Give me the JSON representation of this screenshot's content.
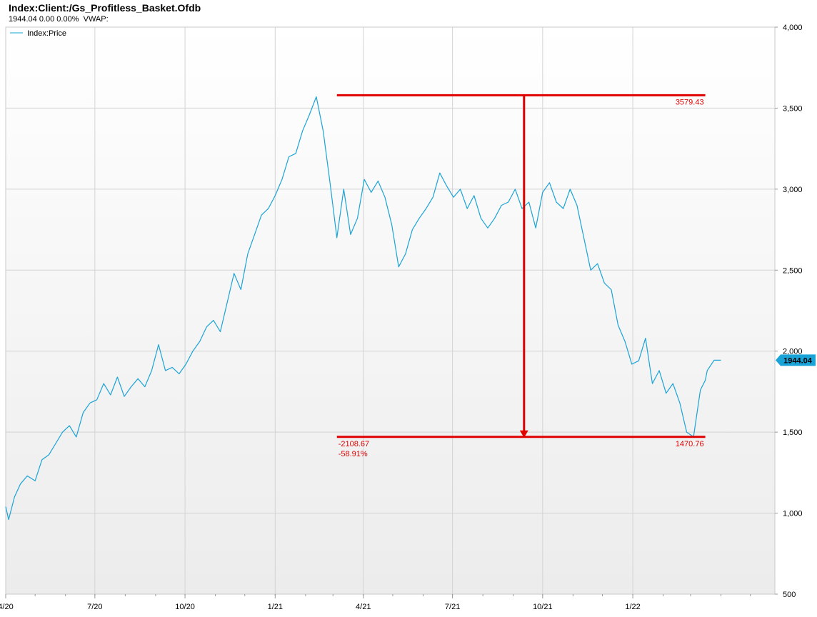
{
  "header": {
    "title": "Index:Client:/Gs_Profitless_Basket.Ofdb",
    "quote": "1944.04 0.00 0.00%",
    "vwap_label": "VWAP:"
  },
  "chart_data": {
    "type": "line",
    "title": "Index:Client:/Gs_Profitless_Basket.Ofdb",
    "ylim": [
      500,
      4000
    ],
    "y_ticks": [
      500,
      1000,
      1500,
      2000,
      2500,
      3000,
      3500,
      4000
    ],
    "y_tick_labels": [
      "500",
      "1,000",
      "1,500",
      "2,000",
      "2,500",
      "3,000",
      "3,500",
      "4,000"
    ],
    "x_tick_labels": [
      "4/20",
      "7/20",
      "10/20",
      "1/21",
      "4/21",
      "7/21",
      "10/21",
      "1/22"
    ],
    "grid": true,
    "legend_position": "top-left",
    "series": [
      {
        "name": "Index:Price",
        "color": "#1aa3d6",
        "x": [
          "2020-04-01",
          "2020-04-04",
          "2020-04-10",
          "2020-04-16",
          "2020-04-23",
          "2020-05-01",
          "2020-05-08",
          "2020-05-15",
          "2020-05-22",
          "2020-05-29",
          "2020-06-05",
          "2020-06-12",
          "2020-06-19",
          "2020-06-26",
          "2020-07-03",
          "2020-07-10",
          "2020-07-17",
          "2020-07-24",
          "2020-07-31",
          "2020-08-07",
          "2020-08-14",
          "2020-08-21",
          "2020-08-28",
          "2020-09-04",
          "2020-09-11",
          "2020-09-18",
          "2020-09-25",
          "2020-10-02",
          "2020-10-09",
          "2020-10-16",
          "2020-10-23",
          "2020-10-30",
          "2020-11-06",
          "2020-11-13",
          "2020-11-20",
          "2020-11-27",
          "2020-12-04",
          "2020-12-11",
          "2020-12-18",
          "2020-12-25",
          "2021-01-01",
          "2021-01-08",
          "2021-01-15",
          "2021-01-22",
          "2021-01-29",
          "2021-02-05",
          "2021-02-12",
          "2021-02-19",
          "2021-02-26",
          "2021-03-05",
          "2021-03-12",
          "2021-03-19",
          "2021-03-26",
          "2021-04-02",
          "2021-04-09",
          "2021-04-16",
          "2021-04-23",
          "2021-04-30",
          "2021-05-07",
          "2021-05-14",
          "2021-05-21",
          "2021-05-28",
          "2021-06-04",
          "2021-06-11",
          "2021-06-18",
          "2021-06-25",
          "2021-07-02",
          "2021-07-09",
          "2021-07-16",
          "2021-07-23",
          "2021-07-30",
          "2021-08-06",
          "2021-08-13",
          "2021-08-20",
          "2021-08-27",
          "2021-09-03",
          "2021-09-10",
          "2021-09-17",
          "2021-09-24",
          "2021-10-01",
          "2021-10-08",
          "2021-10-15",
          "2021-10-22",
          "2021-10-29",
          "2021-11-05",
          "2021-11-12",
          "2021-11-19",
          "2021-11-26",
          "2021-12-03",
          "2021-12-10",
          "2021-12-17",
          "2021-12-24",
          "2021-12-31",
          "2022-01-07",
          "2022-01-14",
          "2022-01-21",
          "2022-01-28",
          "2022-02-04",
          "2022-02-11",
          "2022-02-18",
          "2022-02-25",
          "2022-03-04",
          "2022-03-11",
          "2022-03-16",
          "2022-03-18",
          "2022-03-25",
          "2022-04-01"
        ],
        "values": [
          1040,
          960,
          1100,
          1180,
          1230,
          1200,
          1330,
          1360,
          1430,
          1500,
          1540,
          1470,
          1620,
          1680,
          1700,
          1800,
          1730,
          1840,
          1720,
          1780,
          1830,
          1780,
          1880,
          2040,
          1880,
          1900,
          1860,
          1920,
          2000,
          2060,
          2150,
          2190,
          2120,
          2300,
          2480,
          2380,
          2600,
          2720,
          2840,
          2880,
          2960,
          3060,
          3200,
          3220,
          3360,
          3460,
          3570,
          3360,
          3040,
          2700,
          3000,
          2720,
          2820,
          3060,
          2980,
          3050,
          2950,
          2780,
          2520,
          2600,
          2750,
          2820,
          2880,
          2950,
          3100,
          3020,
          2950,
          3000,
          2880,
          2960,
          2820,
          2760,
          2820,
          2900,
          2920,
          3000,
          2880,
          2920,
          2760,
          2980,
          3040,
          2920,
          2880,
          3000,
          2900,
          2700,
          2500,
          2540,
          2420,
          2380,
          2160,
          2060,
          1920,
          1940,
          2080,
          1800,
          1880,
          1740,
          1800,
          1680,
          1500,
          1470.76,
          1760,
          1820,
          1880,
          1944.04,
          1944.04
        ]
      }
    ],
    "current_value_label": "1944.04",
    "annotation": {
      "high_label": "3579.43",
      "low_label": "1470.76",
      "change_label": "-2108.67",
      "percent_label": "-58.91%",
      "color": "#e00000",
      "high_value": 3579.43,
      "low_value": 1470.76,
      "x_start": "2021-03-05",
      "x_end": "2022-03-16",
      "arrow_x": "2021-09-12"
    }
  }
}
